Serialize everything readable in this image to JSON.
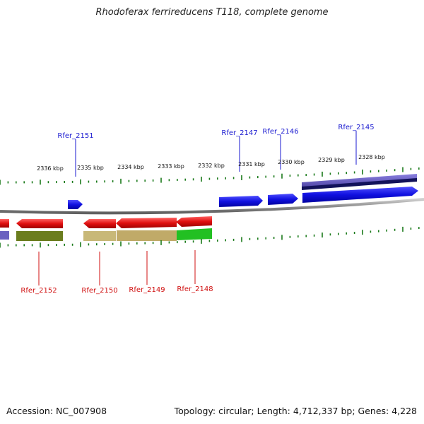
{
  "title": "Rhodoferax ferrireducens T118, complete genome",
  "footer": {
    "accession": "Accession: NC_007908",
    "summary": "Topology: circular; Length: 4,712,337 bp; Genes: 4,228"
  },
  "scale_labels": [
    "2336 kbp",
    "2335 kbp",
    "2334 kbp",
    "2333 kbp",
    "2332 kbp",
    "2331 kbp",
    "2330 kbp",
    "2329 kbp",
    "2328 kbp"
  ],
  "forward_genes": [
    "Rfer_2151",
    "Rfer_2147",
    "Rfer_2146",
    "Rfer_2145"
  ],
  "reverse_genes": [
    "Rfer_2152",
    "Rfer_2150",
    "Rfer_2149",
    "Rfer_2148"
  ],
  "colors": {
    "forward_gene": "#1010e0",
    "reverse_gene": "#e01010",
    "forward_label": "#1a1ad0",
    "reverse_label": "#d01010",
    "tick": "#1a7a1a",
    "backbone": "#888888"
  }
}
